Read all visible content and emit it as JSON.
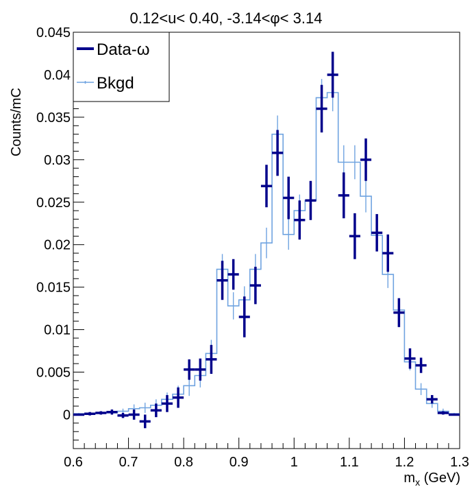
{
  "chart_data": {
    "type": "histogram",
    "title": "0.12<u< 0.40, -3.14<φ< 3.14",
    "xlabel": "m_x (GeV)",
    "xlabel_main": "m",
    "xlabel_sub": "x",
    "xlabel_unit": " (GeV)",
    "ylabel": "Counts/mC",
    "xlim": [
      0.6,
      1.3
    ],
    "ylim": [
      -0.004,
      0.045
    ],
    "x_ticks": [
      "0.6",
      "0.7",
      "0.8",
      "0.9",
      "1",
      "1.1",
      "1.2",
      "1.3"
    ],
    "y_ticks": [
      "0",
      "0.005",
      "0.01",
      "0.015",
      "0.02",
      "0.025",
      "0.03",
      "0.035",
      "0.04",
      "0.045"
    ],
    "grid": false,
    "legend_position": "top-left",
    "series": [
      {
        "name": "Data-ω",
        "style": "points",
        "color": "#00008b",
        "x": [
          0.61,
          0.63,
          0.65,
          0.67,
          0.69,
          0.71,
          0.73,
          0.75,
          0.77,
          0.79,
          0.81,
          0.83,
          0.85,
          0.87,
          0.89,
          0.91,
          0.93,
          0.95,
          0.97,
          0.99,
          1.01,
          1.03,
          1.05,
          1.07,
          1.09,
          1.11,
          1.13,
          1.15,
          1.17,
          1.19,
          1.21,
          1.23,
          1.25,
          1.27,
          1.29
        ],
        "y": [
          0.0,
          0.0001,
          0.0002,
          0.0003,
          -0.0001,
          0.0,
          -0.0008,
          0.0005,
          0.0013,
          0.002,
          0.0053,
          0.0053,
          0.0065,
          0.0158,
          0.0165,
          0.0115,
          0.0152,
          0.0269,
          0.0308,
          0.0255,
          0.0229,
          0.0252,
          0.036,
          0.04,
          0.0258,
          0.021,
          0.03,
          0.0214,
          0.019,
          0.012,
          0.0066,
          0.0058,
          0.0018,
          0.0002,
          0.0
        ],
        "err": [
          0.0001,
          0.0002,
          0.0002,
          0.0003,
          0.0003,
          0.0006,
          0.0008,
          0.0008,
          0.001,
          0.0012,
          0.0012,
          0.0013,
          0.0017,
          0.0023,
          0.0018,
          0.0024,
          0.0022,
          0.0025,
          0.0027,
          0.0025,
          0.0023,
          0.0023,
          0.0028,
          0.0027,
          0.0027,
          0.0027,
          0.0025,
          0.0022,
          0.0022,
          0.0017,
          0.0012,
          0.0009,
          0.0005,
          0.0002,
          0.0001
        ]
      },
      {
        "name": "Bkgd",
        "style": "step",
        "color": "#6fa3e0",
        "x": [
          0.61,
          0.63,
          0.65,
          0.67,
          0.69,
          0.71,
          0.73,
          0.75,
          0.77,
          0.79,
          0.81,
          0.83,
          0.85,
          0.87,
          0.89,
          0.91,
          0.93,
          0.95,
          0.97,
          0.99,
          1.01,
          1.03,
          1.05,
          1.07,
          1.09,
          1.11,
          1.13,
          1.15,
          1.17,
          1.19,
          1.21,
          1.23,
          1.25,
          1.27,
          1.29
        ],
        "y": [
          0.0001,
          0.0001,
          0.0002,
          0.0002,
          0.0004,
          0.0007,
          0.0008,
          0.0011,
          0.0018,
          0.0024,
          0.0034,
          0.0046,
          0.0072,
          0.0171,
          0.0128,
          0.0135,
          0.0171,
          0.0202,
          0.033,
          0.0212,
          0.024,
          0.0252,
          0.0373,
          0.0379,
          0.0297,
          0.0297,
          0.0257,
          0.0211,
          0.0165,
          0.0123,
          0.0062,
          0.003,
          0.0013,
          0.0004,
          0.0001
        ],
        "err": [
          0.0001,
          0.0001,
          0.0002,
          0.0002,
          0.0003,
          0.0005,
          0.0006,
          0.0007,
          0.0008,
          0.001,
          0.0012,
          0.0014,
          0.0016,
          0.0018,
          0.0016,
          0.0016,
          0.0018,
          0.0018,
          0.0022,
          0.0018,
          0.0019,
          0.0019,
          0.0022,
          0.0022,
          0.002,
          0.002,
          0.0019,
          0.0018,
          0.0016,
          0.0014,
          0.001,
          0.0007,
          0.0005,
          0.0003,
          0.0001
        ]
      }
    ]
  }
}
